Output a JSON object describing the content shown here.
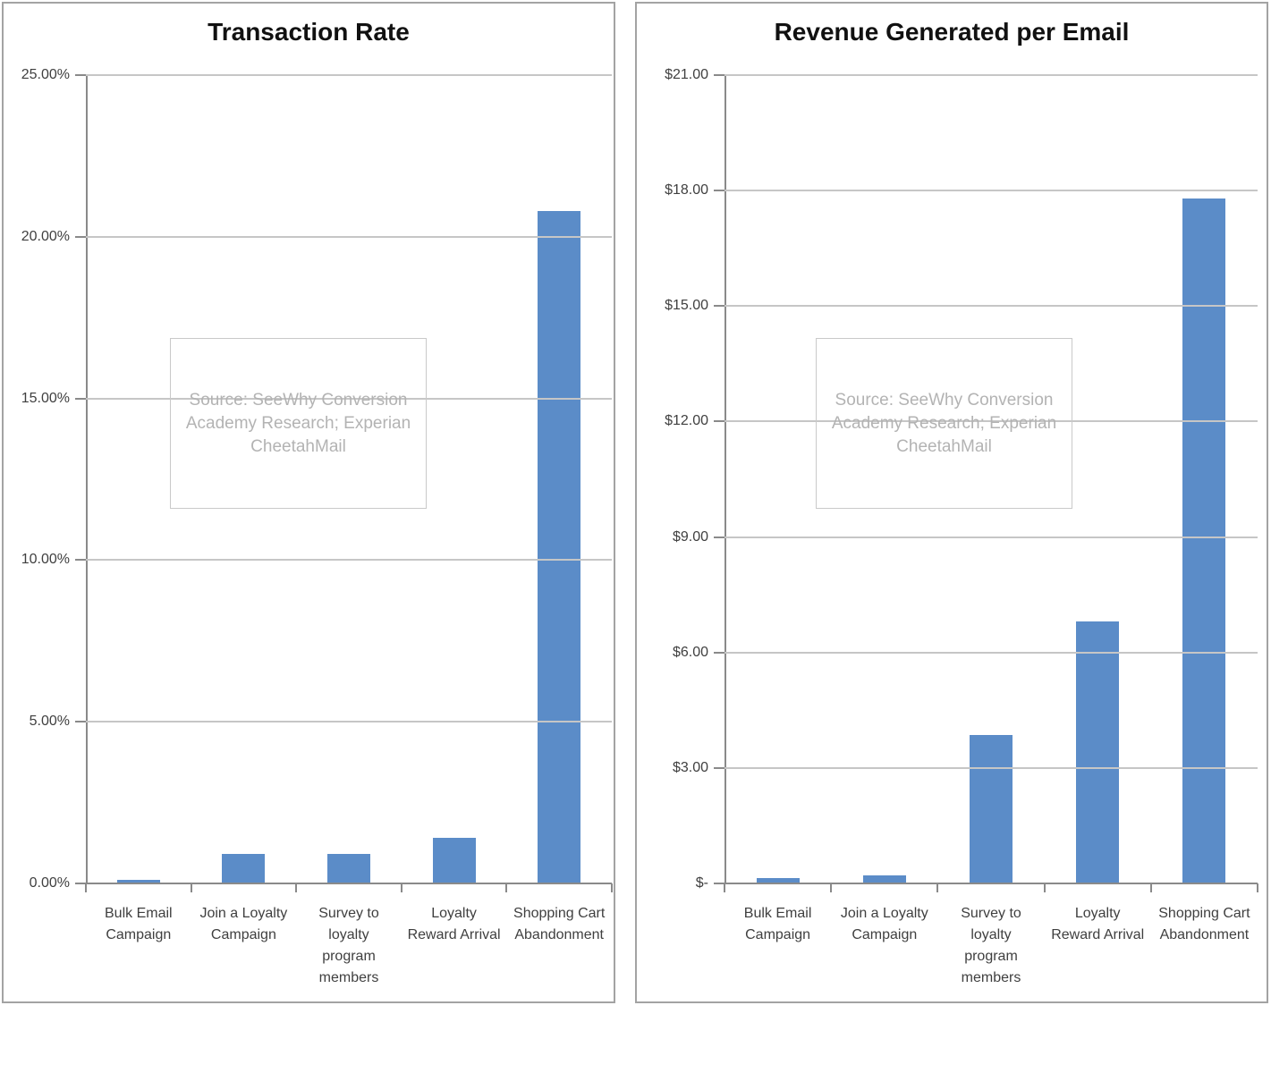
{
  "page": {
    "background": "#ffffff",
    "panel_border_color": "#a3a3a3"
  },
  "chart_data": [
    {
      "type": "bar",
      "title": "Transaction Rate",
      "categories": [
        "Bulk Email Campaign",
        "Join a Loyalty Campaign",
        "Survey to loyalty program members",
        "Loyalty Reward Arrival",
        "Shopping Cart Abandonment"
      ],
      "values": [
        0.1,
        0.9,
        0.9,
        1.4,
        20.8
      ],
      "value_unit": "percent",
      "xlabel": "",
      "ylabel": "",
      "ylim": [
        0,
        25
      ],
      "ytick_step": 5,
      "ytick_labels": [
        "25.00%",
        "20.00%",
        "15.00%",
        "10.00%",
        "5.00%",
        "0.00%"
      ],
      "grid": true,
      "legend_position": "none",
      "bar_color": "#5b8cc8",
      "gridline_color": "#c6c6c6",
      "axis_color": "#8a8a8a",
      "annotation": "Source: SeeWhy Conversion Academy Research; Experian CheetahMail"
    },
    {
      "type": "bar",
      "title": "Revenue Generated per Email",
      "categories": [
        "Bulk Email Campaign",
        "Join a Loyalty Campaign",
        "Survey to loyalty program members",
        "Loyalty Reward Arrival",
        "Shopping Cart Abandonment"
      ],
      "values": [
        0.15,
        0.2,
        3.85,
        6.8,
        17.8
      ],
      "value_unit": "dollars",
      "xlabel": "",
      "ylabel": "",
      "ylim": [
        0,
        21
      ],
      "ytick_step": 3,
      "ytick_labels": [
        "$21.00",
        "$18.00",
        "$15.00",
        "$12.00",
        "$9.00",
        "$6.00",
        "$3.00",
        "$-"
      ],
      "grid": true,
      "legend_position": "none",
      "bar_color": "#5b8cc8",
      "gridline_color": "#c6c6c6",
      "axis_color": "#8a8a8a",
      "annotation": "Source: SeeWhy Conversion Academy Research; Experian CheetahMail"
    }
  ]
}
